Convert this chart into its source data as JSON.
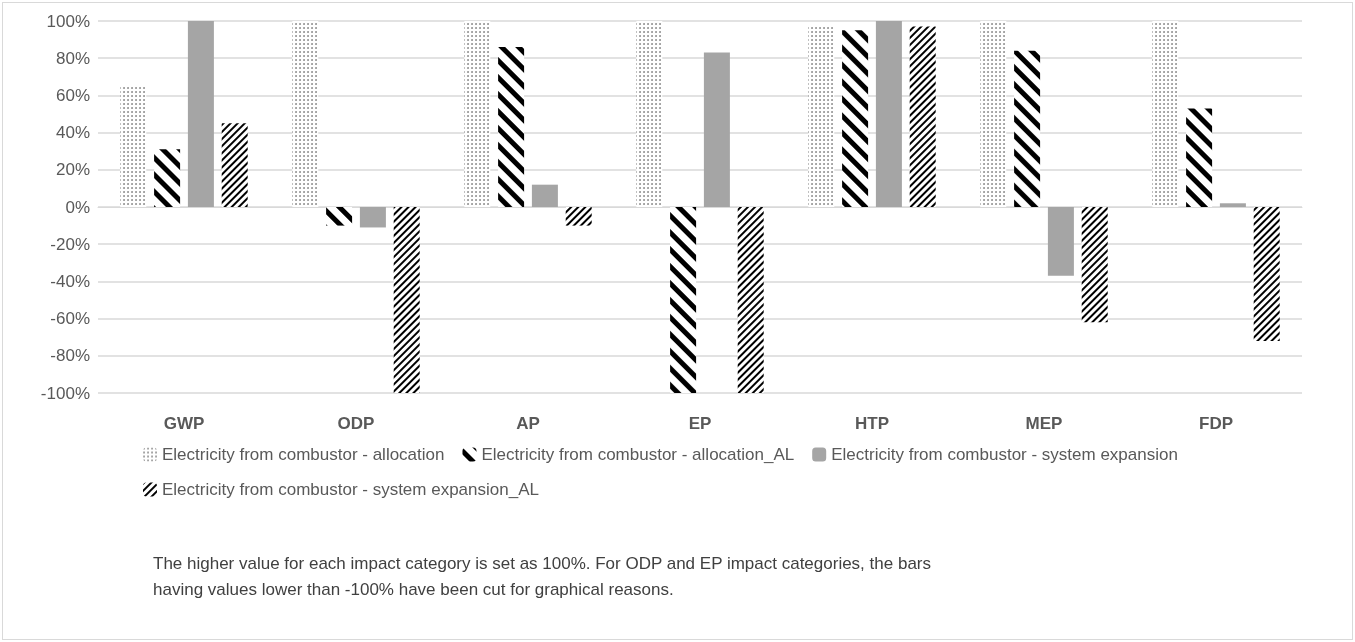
{
  "chart_data": {
    "type": "bar",
    "categories": [
      "GWP",
      "ODP",
      "AP",
      "EP",
      "HTP",
      "MEP",
      "FDP"
    ],
    "series": [
      {
        "name": "Electricity from combustor - allocation",
        "color": "#000000",
        "values": [
          65,
          100,
          100,
          100,
          97,
          100,
          100
        ]
      },
      {
        "name": "Electricity from combustor - allocation_AL",
        "color": "#000000",
        "values": [
          31,
          -10,
          86,
          -100,
          95,
          84,
          53
        ]
      },
      {
        "name": "Electricity from combustor - system expansion",
        "color": "#a5a5a5",
        "values": [
          100,
          -11,
          12,
          83,
          100,
          -37,
          2
        ]
      },
      {
        "name": "Electricity from combustor - system expansion_AL",
        "color": "#000000",
        "values": [
          45,
          -100,
          -10,
          -100,
          97,
          -62,
          -72
        ]
      }
    ],
    "ylim": [
      -100,
      100
    ],
    "yticks": [
      {
        "value": -100,
        "label": "-100%"
      },
      {
        "value": -80,
        "label": "-80%"
      },
      {
        "value": -60,
        "label": "-60%"
      },
      {
        "value": -40,
        "label": "-40%"
      },
      {
        "value": -20,
        "label": "-20%"
      },
      {
        "value": 0,
        "label": "0%"
      },
      {
        "value": 20,
        "label": "20%"
      },
      {
        "value": 40,
        "label": "40%"
      },
      {
        "value": 60,
        "label": "60%"
      },
      {
        "value": 80,
        "label": "80%"
      },
      {
        "value": 100,
        "label": "100%"
      }
    ],
    "grid": "y",
    "legend": "bottom",
    "annotations": [
      "The higher value for each impact category is set as 100%. For ODP and EP impact categories, the bars having values lower than -100% have been cut for graphical reasons."
    ]
  }
}
